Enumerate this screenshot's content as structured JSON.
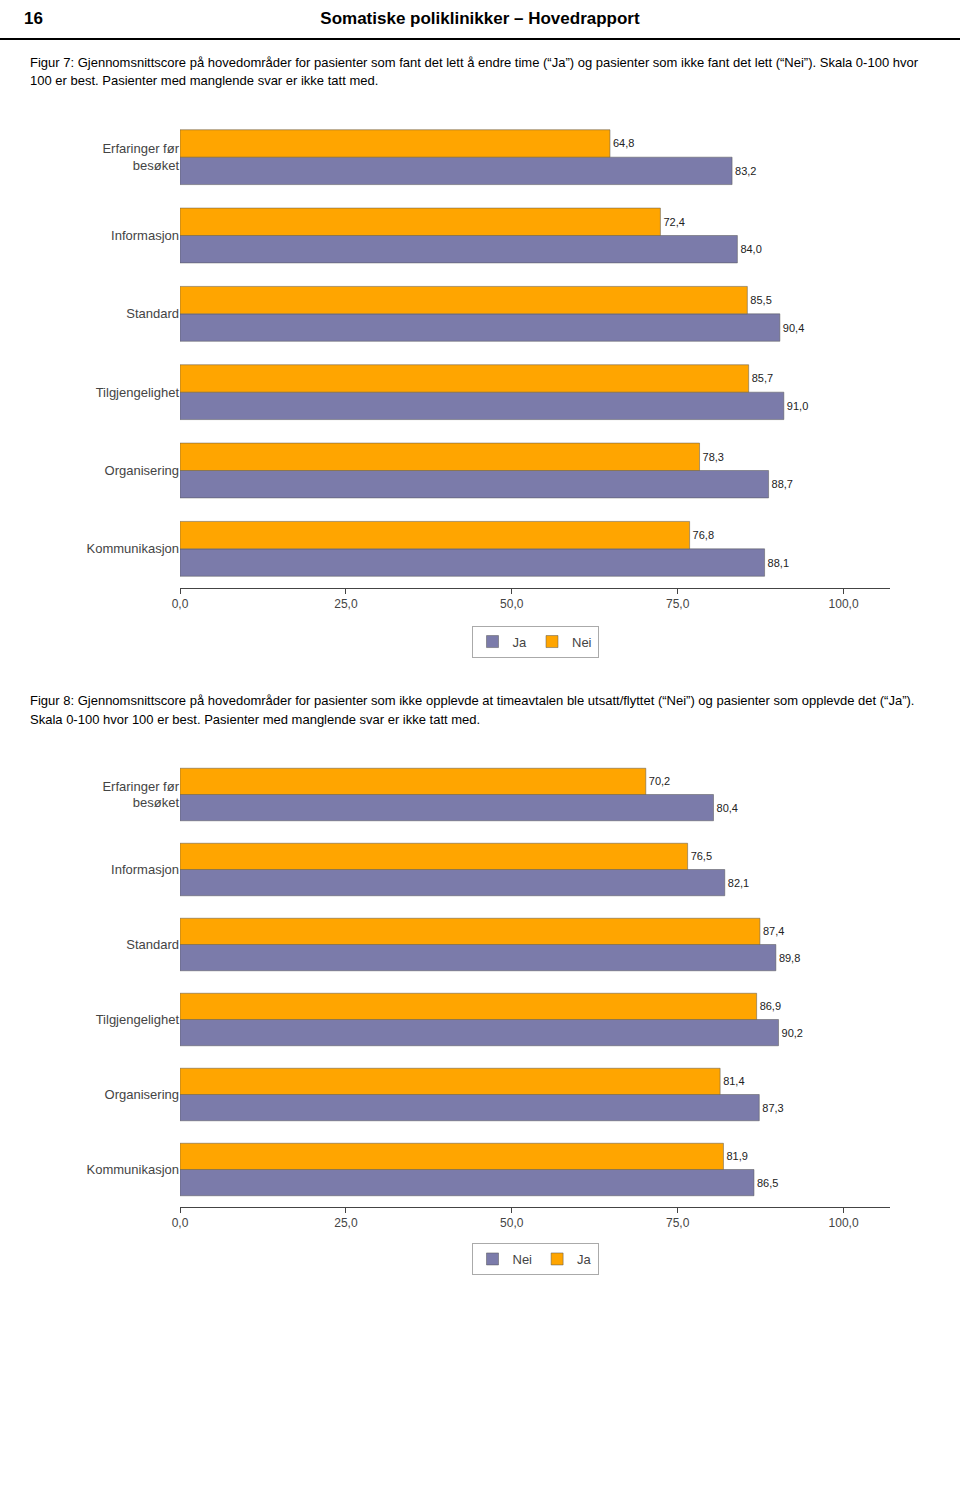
{
  "chart_data": [
    {
      "type": "bar",
      "orientation": "horizontal",
      "title": "Figur 7: Gjennomsnittscore på hovedområder for pasienter som fant det lett å endre time (“Ja”) og pasienter som ikke fant det lett (“Nei”). Skala 0-100 hvor 100 er best. Pasienter med manglende svar er ikke tatt med.",
      "annotations": [
        "16",
        "Somatiske poliklinikker – Hovedrapport"
      ],
      "categories": [
        "Erfaringer før\nbesøket",
        "Informasjon",
        "Standard",
        "Tilgjengelighet",
        "Organisering",
        "Kommunikasjon"
      ],
      "series": [
        {
          "name": "Ja",
          "color": "#7B7BAA",
          "values": [
            83.2,
            84.0,
            90.4,
            91.0,
            88.7,
            88.1
          ],
          "value_labels": [
            "83,2",
            "84,0",
            "90,4",
            "91,0",
            "88,7",
            "88,1"
          ]
        },
        {
          "name": "Nei",
          "color": "#FFA500",
          "values": [
            64.8,
            72.4,
            85.5,
            85.7,
            78.3,
            76.8
          ],
          "value_labels": [
            "64,8",
            "72,4",
            "85,5",
            "85,7",
            "78,3",
            "76,8"
          ]
        }
      ],
      "xlim": [
        0,
        107
      ],
      "xticks": [
        {
          "value": 0,
          "label": "0,0"
        },
        {
          "value": 25,
          "label": "25,0"
        },
        {
          "value": 50,
          "label": "50,0"
        },
        {
          "value": 75,
          "label": "75,0"
        },
        {
          "value": 100,
          "label": "100,0"
        }
      ],
      "grid": false,
      "legend": "bottom",
      "data_labels": true
    },
    {
      "type": "bar",
      "orientation": "horizontal",
      "title": "Figur 8: Gjennomsnittscore på hovedområder for pasienter som ikke opplevde at timeavtalen ble utsatt/flyttet (“Nei”) og pasienter som opplevde det (“Ja”). Skala 0-100 hvor 100 er best. Pasienter med manglende svar er ikke tatt med.",
      "categories": [
        "Erfaringer før\nbesøket",
        "Informasjon",
        "Standard",
        "Tilgjengelighet",
        "Organisering",
        "Kommunikasjon"
      ],
      "series": [
        {
          "name": "Nei",
          "color": "#7B7BAA",
          "values": [
            80.4,
            82.1,
            89.8,
            90.2,
            87.3,
            86.5
          ],
          "value_labels": [
            "80,4",
            "82,1",
            "89,8",
            "90,2",
            "87,3",
            "86,5"
          ]
        },
        {
          "name": "Ja",
          "color": "#FFA500",
          "values": [
            70.2,
            76.5,
            87.4,
            86.9,
            81.4,
            81.9
          ],
          "value_labels": [
            "70,2",
            "76,5",
            "87,4",
            "86,9",
            "81,4",
            "81,9"
          ]
        }
      ],
      "xlim": [
        0,
        107
      ],
      "xticks": [
        {
          "value": 0,
          "label": "0,0"
        },
        {
          "value": 25,
          "label": "25,0"
        },
        {
          "value": 50,
          "label": "50,0"
        },
        {
          "value": 75,
          "label": "75,0"
        },
        {
          "value": 100,
          "label": "100,0"
        }
      ],
      "grid": false,
      "legend": "bottom",
      "data_labels": true
    }
  ]
}
